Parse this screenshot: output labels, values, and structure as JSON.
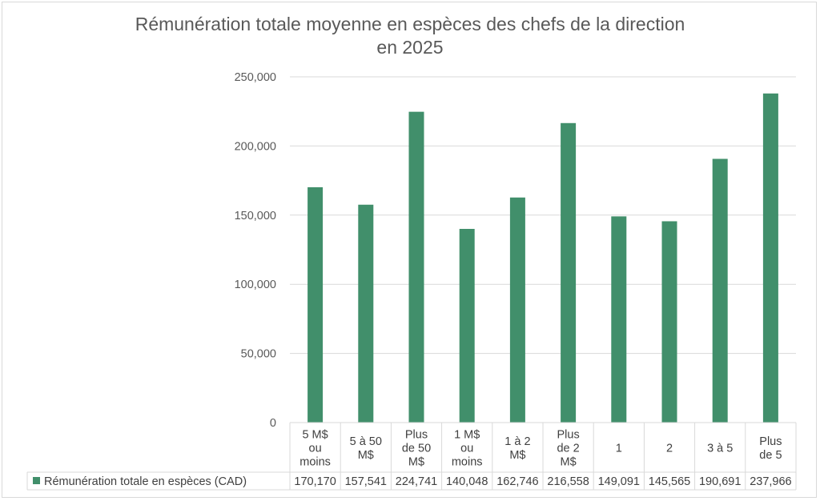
{
  "chart_data": {
    "type": "bar",
    "title": "Rémunération totale moyenne en espèces des chefs de la direction en 2025",
    "title_lines": [
      "Rémunération totale moyenne en espèces des chefs de la direction",
      "en 2025"
    ],
    "categories": [
      "5 M$ ou moins",
      "5 à 50 M$",
      "Plus de 50 M$",
      "1 M$ ou moins",
      "1 à 2 M$",
      "Plus de 2 M$",
      "1",
      "2",
      "3 à 5",
      "Plus de 5"
    ],
    "category_lines": [
      [
        "5 M$",
        "ou",
        "moins"
      ],
      [
        "5 à 50",
        "M$"
      ],
      [
        "Plus",
        "de 50",
        "M$"
      ],
      [
        "1 M$",
        "ou",
        "moins"
      ],
      [
        "1 à 2",
        "M$"
      ],
      [
        "Plus",
        "de 2",
        "M$"
      ],
      [
        "1"
      ],
      [
        "2"
      ],
      [
        "3 à 5"
      ],
      [
        "Plus",
        "de 5"
      ]
    ],
    "series": [
      {
        "name": "Rémunération totale en espèces (CAD)",
        "color": "#418f6b",
        "values": [
          170170,
          157541,
          224741,
          140048,
          162746,
          216558,
          149091,
          145565,
          190691,
          237966
        ],
        "value_labels": [
          "170,170",
          "157,541",
          "224,741",
          "140,048",
          "162,746",
          "216,558",
          "149,091",
          "145,565",
          "190,691",
          "237,966"
        ]
      }
    ],
    "ylim": [
      0,
      250000
    ],
    "yticks": [
      0,
      50000,
      100000,
      150000,
      200000,
      250000
    ],
    "ytick_labels": [
      "0",
      "50,000",
      "100,000",
      "150,000",
      "200,000",
      "250,000"
    ],
    "grid": true,
    "legend": "data-table",
    "xlabel": "",
    "ylabel": ""
  }
}
